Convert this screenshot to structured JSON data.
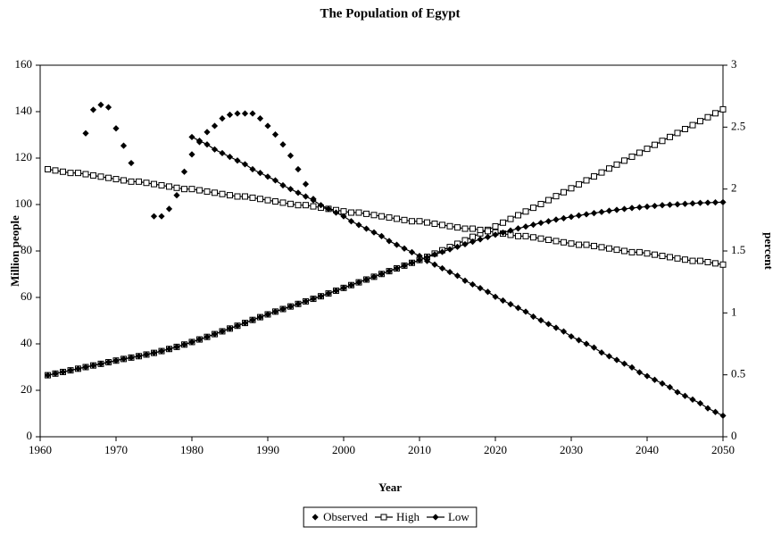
{
  "chart_data": {
    "type": "line",
    "title": "The Population of Egypt",
    "x_label": "Year",
    "y_label": "Million people",
    "y2_label": "percent",
    "xlim": [
      1960,
      2050
    ],
    "xticks": [
      1960,
      1970,
      1980,
      1990,
      2000,
      2010,
      2020,
      2030,
      2040,
      2050
    ],
    "ylim": [
      0,
      160
    ],
    "yticks": [
      0,
      20,
      40,
      60,
      80,
      100,
      120,
      140,
      160
    ],
    "y2lim": [
      0,
      3
    ],
    "y2ticks": [
      0,
      0.5,
      1,
      1.5,
      2,
      2.5,
      3
    ],
    "legend": "bottom",
    "x": [
      1961,
      1962,
      1963,
      1964,
      1965,
      1966,
      1967,
      1968,
      1969,
      1970,
      1971,
      1972,
      1973,
      1974,
      1975,
      1976,
      1977,
      1978,
      1979,
      1980,
      1981,
      1982,
      1983,
      1984,
      1985,
      1986,
      1987,
      1988,
      1989,
      1990,
      1991,
      1992,
      1993,
      1994,
      1995,
      1996,
      1997,
      1998,
      1999,
      2000,
      2001,
      2002,
      2003,
      2004,
      2005,
      2006,
      2007,
      2008,
      2009,
      2010,
      2011,
      2012,
      2013,
      2014,
      2015,
      2016,
      2017,
      2018,
      2019,
      2020,
      2021,
      2022,
      2023,
      2024,
      2025,
      2026,
      2027,
      2028,
      2029,
      2030,
      2031,
      2032,
      2033,
      2034,
      2035,
      2036,
      2037,
      2038,
      2039,
      2040,
      2041,
      2042,
      2043,
      2044,
      2045,
      2046,
      2047,
      2048,
      2049,
      2050
    ],
    "series": [
      {
        "name": "Observed",
        "color": "#000000",
        "marker": "diamond",
        "line": false,
        "x": [
          1966,
          1967,
          1968,
          1969,
          1970,
          1971,
          1972,
          1975,
          1976,
          1977,
          1978,
          1979,
          1980,
          1981,
          1982,
          1983,
          1984,
          1985,
          1986,
          1987,
          1988,
          1989,
          1990,
          1991,
          1992,
          1993,
          1994,
          1995,
          1996
        ],
        "values_y2": [
          2.45,
          2.64,
          2.68,
          2.66,
          2.49,
          2.35,
          2.21,
          1.78,
          1.78,
          1.84,
          1.95,
          2.14,
          2.28,
          2.38,
          2.46,
          2.51,
          2.57,
          2.6,
          2.61,
          2.61,
          2.61,
          2.57,
          2.51,
          2.44,
          2.36,
          2.27,
          2.16,
          2.04,
          1.92
        ]
      },
      {
        "name": "High",
        "color": "#000000",
        "marker": "square",
        "line": true,
        "values": [
          26.5,
          27.2,
          27.9,
          28.6,
          29.3,
          30.0,
          30.7,
          31.4,
          32.1,
          32.8,
          33.5,
          34.1,
          34.7,
          35.4,
          36.1,
          36.9,
          37.8,
          38.7,
          39.7,
          40.8,
          41.9,
          43.0,
          44.2,
          45.4,
          46.6,
          47.8,
          49.0,
          50.3,
          51.5,
          52.7,
          53.9,
          55.0,
          56.1,
          57.2,
          58.3,
          59.4,
          60.5,
          61.7,
          62.9,
          64.1,
          65.3,
          66.5,
          67.7,
          68.9,
          70.1,
          71.3,
          72.5,
          73.7,
          74.9,
          76.1,
          77.5,
          78.9,
          80.3,
          81.7,
          83.1,
          84.6,
          86.1,
          87.6,
          89.1,
          90.6,
          92.2,
          93.8,
          95.4,
          97.0,
          98.6,
          100.2,
          101.9,
          103.6,
          105.3,
          107.0,
          108.7,
          110.4,
          112.1,
          113.8,
          115.5,
          117.2,
          118.9,
          120.6,
          122.3,
          124.0,
          125.7,
          127.4,
          129.1,
          130.8,
          132.5,
          134.2,
          135.9,
          137.6,
          139.3,
          141.0
        ],
        "values_y2": [
          2.16,
          2.15,
          2.14,
          2.13,
          2.13,
          2.12,
          2.11,
          2.1,
          2.09,
          2.08,
          2.07,
          2.06,
          2.06,
          2.05,
          2.04,
          2.03,
          2.02,
          2.01,
          2.0,
          2.0,
          1.99,
          1.98,
          1.97,
          1.96,
          1.95,
          1.94,
          1.94,
          1.93,
          1.92,
          1.91,
          1.9,
          1.89,
          1.88,
          1.87,
          1.87,
          1.86,
          1.85,
          1.84,
          1.83,
          1.82,
          1.81,
          1.81,
          1.8,
          1.79,
          1.78,
          1.77,
          1.76,
          1.75,
          1.74,
          1.74,
          1.73,
          1.72,
          1.71,
          1.7,
          1.69,
          1.68,
          1.68,
          1.67,
          1.66,
          1.65,
          1.64,
          1.63,
          1.62,
          1.62,
          1.61,
          1.6,
          1.59,
          1.58,
          1.57,
          1.56,
          1.55,
          1.55,
          1.54,
          1.53,
          1.52,
          1.51,
          1.5,
          1.49,
          1.49,
          1.48,
          1.47,
          1.46,
          1.45,
          1.44,
          1.43,
          1.42,
          1.42,
          1.41,
          1.4,
          1.39
        ]
      },
      {
        "name": "Low",
        "color": "#000000",
        "marker": "diamond",
        "line": true,
        "values": [
          26.5,
          27.2,
          27.9,
          28.6,
          29.3,
          30.0,
          30.7,
          31.4,
          32.1,
          32.8,
          33.5,
          34.1,
          34.7,
          35.4,
          36.1,
          36.9,
          37.8,
          38.7,
          39.7,
          40.8,
          41.9,
          43.0,
          44.2,
          45.4,
          46.6,
          47.8,
          49.0,
          50.3,
          51.5,
          52.7,
          53.9,
          55.0,
          56.1,
          57.2,
          58.3,
          59.4,
          60.5,
          61.7,
          62.9,
          64.1,
          65.3,
          66.5,
          67.7,
          68.9,
          70.1,
          71.3,
          72.5,
          73.7,
          74.9,
          76.1,
          77.3,
          78.5,
          79.6,
          80.7,
          81.8,
          82.9,
          84.0,
          85.0,
          86.0,
          87.0,
          87.9,
          88.8,
          89.7,
          90.5,
          91.3,
          92.1,
          92.8,
          93.5,
          94.1,
          94.7,
          95.3,
          95.8,
          96.3,
          96.8,
          97.3,
          97.7,
          98.1,
          98.5,
          98.8,
          99.1,
          99.4,
          99.7,
          99.9,
          100.1,
          100.3,
          100.5,
          100.7,
          100.8,
          100.9,
          101.0
        ],
        "values_y2": [
          null,
          null,
          null,
          null,
          null,
          null,
          null,
          null,
          null,
          null,
          null,
          null,
          null,
          null,
          null,
          null,
          null,
          null,
          null,
          2.42,
          2.39,
          2.36,
          2.32,
          2.29,
          2.26,
          2.23,
          2.2,
          2.16,
          2.13,
          2.1,
          2.07,
          2.03,
          2.0,
          1.97,
          1.94,
          1.91,
          1.87,
          1.84,
          1.81,
          1.78,
          1.74,
          1.71,
          1.68,
          1.65,
          1.62,
          1.58,
          1.55,
          1.52,
          1.49,
          1.46,
          1.42,
          1.39,
          1.36,
          1.33,
          1.3,
          1.26,
          1.23,
          1.2,
          1.17,
          1.13,
          1.1,
          1.07,
          1.04,
          1.01,
          0.97,
          0.94,
          0.91,
          0.88,
          0.85,
          0.81,
          0.78,
          0.75,
          0.72,
          0.68,
          0.65,
          0.62,
          0.59,
          0.56,
          0.52,
          0.49,
          0.46,
          0.43,
          0.4,
          0.36,
          0.33,
          0.3,
          0.27,
          0.23,
          0.2,
          0.17
        ]
      }
    ]
  }
}
